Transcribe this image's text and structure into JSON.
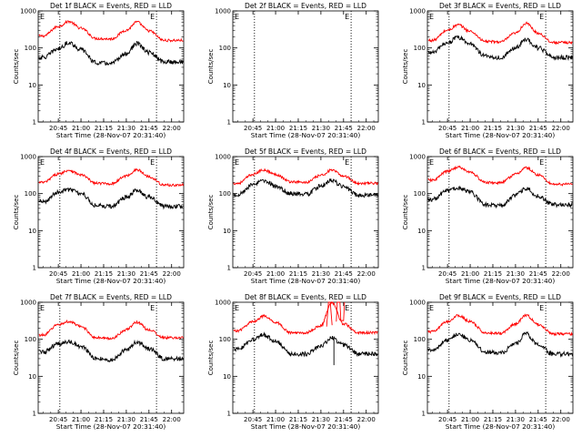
{
  "figure": {
    "xlabel": "Start Time (28-Nov-07 20:31:40)",
    "ylabel": "Counts/sec",
    "x_tick_labels": [
      "20:45",
      "21:00",
      "21:15",
      "21:30",
      "21:45",
      "22:00"
    ],
    "y_tick_labels": [
      "1",
      "10",
      "100",
      "1000"
    ],
    "marker_label": "E",
    "colors": {
      "events": "#000000",
      "lld": "#ff0000",
      "axes": "#000000",
      "background": "#ffffff"
    }
  },
  "chart_data": [
    {
      "type": "line",
      "title": "Det 1f BLACK = Events, RED = LLD",
      "ylabel": "Counts/sec",
      "xlabel": "Start Time (28-Nov-07 20:31:40)",
      "x": [
        "20:35",
        "20:45",
        "20:52",
        "21:00",
        "21:10",
        "21:20",
        "21:30",
        "21:37",
        "21:45",
        "21:55",
        "22:05"
      ],
      "y_scale": "log",
      "ylim": [
        1,
        1000
      ],
      "xlim": [
        "20:31:40",
        "22:08"
      ],
      "dotted_markers": [
        "20:46",
        "21:50"
      ],
      "series": [
        {
          "name": "LLD",
          "color": "#ff0000",
          "values": [
            210,
            380,
            520,
            340,
            180,
            175,
            300,
            500,
            290,
            160,
            160
          ]
        },
        {
          "name": "Events",
          "color": "#000000",
          "values": [
            55,
            95,
            140,
            90,
            40,
            38,
            70,
            130,
            75,
            42,
            42
          ]
        }
      ]
    },
    {
      "type": "line",
      "title": "Det 2f BLACK = Events, RED = LLD",
      "ylabel": "Counts/sec",
      "xlabel": "Start Time (28-Nov-07 20:31:40)",
      "x": [],
      "y_scale": "log",
      "ylim": [
        1,
        1000
      ],
      "xlim": [
        "20:31:40",
        "22:08"
      ],
      "dotted_markers": [
        "20:46",
        "21:50"
      ],
      "series": []
    },
    {
      "type": "line",
      "title": "Det 3f BLACK = Events, RED = LLD",
      "ylabel": "Counts/sec",
      "xlabel": "Start Time (28-Nov-07 20:31:40)",
      "x": [
        "20:35",
        "20:45",
        "20:52",
        "21:00",
        "21:10",
        "21:20",
        "21:30",
        "21:37",
        "21:45",
        "21:55",
        "22:05"
      ],
      "y_scale": "log",
      "ylim": [
        1,
        1000
      ],
      "xlim": [
        "20:31:40",
        "22:08"
      ],
      "dotted_markers": [
        "20:46",
        "21:50"
      ],
      "series": [
        {
          "name": "LLD",
          "color": "#ff0000",
          "values": [
            160,
            300,
            420,
            280,
            150,
            145,
            250,
            460,
            250,
            140,
            140
          ]
        },
        {
          "name": "Events",
          "color": "#000000",
          "values": [
            75,
            140,
            190,
            130,
            60,
            55,
            100,
            170,
            100,
            55,
            55
          ]
        }
      ]
    },
    {
      "type": "line",
      "title": "Det 4f BLACK = Events, RED = LLD",
      "ylabel": "Counts/sec",
      "xlabel": "Start Time (28-Nov-07 20:31:40)",
      "x": [
        "20:35",
        "20:45",
        "20:52",
        "21:00",
        "21:10",
        "21:20",
        "21:30",
        "21:37",
        "21:45",
        "21:55",
        "22:05"
      ],
      "y_scale": "log",
      "ylim": [
        1,
        1000
      ],
      "xlim": [
        "20:31:40",
        "22:08"
      ],
      "dotted_markers": [
        "20:46",
        "21:50"
      ],
      "series": [
        {
          "name": "LLD",
          "color": "#ff0000",
          "values": [
            200,
            340,
            430,
            320,
            190,
            185,
            300,
            440,
            290,
            170,
            170
          ]
        },
        {
          "name": "Events",
          "color": "#000000",
          "values": [
            60,
            110,
            130,
            100,
            48,
            45,
            80,
            120,
            80,
            45,
            45
          ]
        }
      ]
    },
    {
      "type": "line",
      "title": "Det 5f BLACK = Events, RED = LLD",
      "ylabel": "Counts/sec",
      "xlabel": "Start Time (28-Nov-07 20:31:40)",
      "x": [
        "20:35",
        "20:45",
        "20:52",
        "21:00",
        "21:10",
        "21:20",
        "21:30",
        "21:37",
        "21:45",
        "21:55",
        "22:05"
      ],
      "y_scale": "log",
      "ylim": [
        1,
        1000
      ],
      "xlim": [
        "20:31:40",
        "22:08"
      ],
      "dotted_markers": [
        "20:46",
        "21:50"
      ],
      "series": [
        {
          "name": "LLD",
          "color": "#ff0000",
          "values": [
            190,
            330,
            440,
            330,
            210,
            200,
            310,
            430,
            300,
            190,
            190
          ]
        },
        {
          "name": "Events",
          "color": "#000000",
          "values": [
            95,
            170,
            230,
            160,
            100,
            95,
            160,
            230,
            150,
            90,
            90
          ]
        }
      ]
    },
    {
      "type": "line",
      "title": "Det 6f BLACK = Events, RED = LLD",
      "ylabel": "Counts/sec",
      "xlabel": "Start Time (28-Nov-07 20:31:40)",
      "x": [
        "20:35",
        "20:45",
        "20:52",
        "21:00",
        "21:10",
        "21:20",
        "21:30",
        "21:37",
        "21:45",
        "21:55",
        "22:05"
      ],
      "y_scale": "log",
      "ylim": [
        1,
        1000
      ],
      "xlim": [
        "20:31:40",
        "22:08"
      ],
      "dotted_markers": [
        "20:46",
        "21:50"
      ],
      "series": [
        {
          "name": "LLD",
          "color": "#ff0000",
          "values": [
            230,
            400,
            520,
            380,
            200,
            195,
            330,
            500,
            320,
            180,
            180
          ]
        },
        {
          "name": "Events",
          "color": "#000000",
          "values": [
            70,
            120,
            140,
            110,
            50,
            48,
            90,
            140,
            85,
            50,
            50
          ]
        }
      ]
    },
    {
      "type": "line",
      "title": "Det 7f BLACK = Events, RED = LLD",
      "ylabel": "Counts/sec",
      "xlabel": "Start Time (28-Nov-07 20:31:40)",
      "x": [
        "20:35",
        "20:45",
        "20:52",
        "21:00",
        "21:10",
        "21:20",
        "21:30",
        "21:37",
        "21:45",
        "21:55",
        "22:05"
      ],
      "y_scale": "log",
      "ylim": [
        1,
        1000
      ],
      "xlim": [
        "20:31:40",
        "22:08"
      ],
      "dotted_markers": [
        "20:46",
        "21:50"
      ],
      "series": [
        {
          "name": "LLD",
          "color": "#ff0000",
          "values": [
            130,
            250,
            300,
            220,
            110,
            105,
            180,
            290,
            180,
            110,
            110
          ]
        },
        {
          "name": "Events",
          "color": "#000000",
          "values": [
            45,
            75,
            85,
            65,
            30,
            28,
            50,
            85,
            55,
            30,
            30
          ]
        }
      ]
    },
    {
      "type": "line",
      "title": "Det 8f BLACK = Events, RED = LLD",
      "ylabel": "Counts/sec",
      "xlabel": "Start Time (28-Nov-07 20:31:40)",
      "x": [
        "20:35",
        "20:45",
        "20:52",
        "21:00",
        "21:10",
        "21:20",
        "21:30",
        "21:37",
        "21:45",
        "21:55",
        "22:05"
      ],
      "y_scale": "log",
      "ylim": [
        1,
        1000
      ],
      "xlim": [
        "20:31:40",
        "22:08"
      ],
      "dotted_markers": [
        "20:46",
        "21:50"
      ],
      "annotations": [
        "spikes above 1000 in LLD near 21:35 and 21:42",
        "dropout in Events near 21:40"
      ],
      "series": [
        {
          "name": "LLD",
          "color": "#ff0000",
          "values": [
            170,
            300,
            420,
            290,
            150,
            150,
            230,
            1000,
            260,
            150,
            150
          ]
        },
        {
          "name": "Events",
          "color": "#000000",
          "values": [
            55,
            95,
            130,
            90,
            40,
            40,
            65,
            110,
            70,
            40,
            40
          ]
        }
      ]
    },
    {
      "type": "line",
      "title": "Det 9f BLACK = Events, RED = LLD",
      "ylabel": "Counts/sec",
      "xlabel": "Start Time (28-Nov-07 20:31:40)",
      "x": [
        "20:35",
        "20:45",
        "20:52",
        "21:00",
        "21:10",
        "21:20",
        "21:30",
        "21:37",
        "21:45",
        "21:55",
        "22:05"
      ],
      "y_scale": "log",
      "ylim": [
        1,
        1000
      ],
      "xlim": [
        "20:31:40",
        "22:08"
      ],
      "dotted_markers": [
        "20:46",
        "21:50"
      ],
      "series": [
        {
          "name": "LLD",
          "color": "#ff0000",
          "values": [
            160,
            300,
            440,
            300,
            150,
            145,
            260,
            450,
            250,
            140,
            140
          ]
        },
        {
          "name": "Events",
          "color": "#000000",
          "values": [
            50,
            95,
            140,
            95,
            45,
            42,
            75,
            140,
            70,
            40,
            40
          ]
        }
      ]
    }
  ]
}
